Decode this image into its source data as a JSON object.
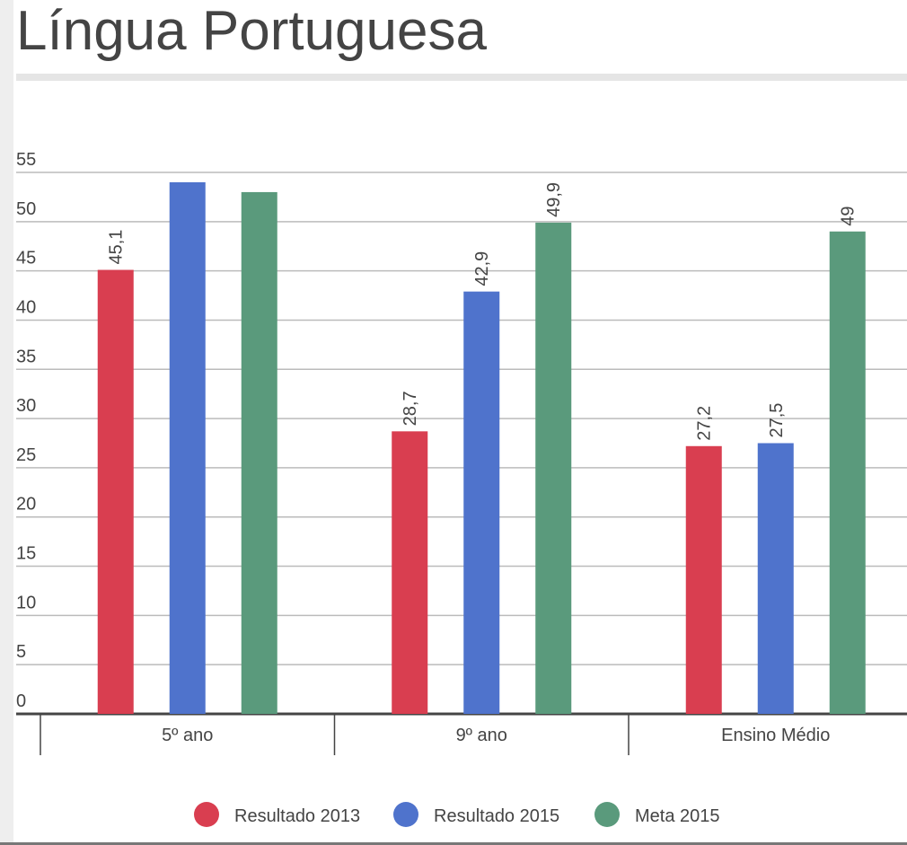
{
  "chart_data": {
    "type": "bar",
    "title": "Língua Portuguesa",
    "categories": [
      "5º ano",
      "9º ano",
      "Ensino Médio"
    ],
    "series": [
      {
        "name": "Resultado 2013",
        "color": "#d93e50",
        "values": [
          45.1,
          28.7,
          27.2
        ],
        "value_labels": [
          "45,1",
          "28,7",
          "27,2"
        ]
      },
      {
        "name": "Resultado 2015",
        "color": "#4f73cc",
        "values": [
          54,
          42.9,
          27.5
        ],
        "value_labels": [
          null,
          "42,9",
          "27,5"
        ]
      },
      {
        "name": "Meta 2015",
        "color": "#5a9a7c",
        "values": [
          53,
          49.9,
          49
        ],
        "value_labels": [
          null,
          "49,9",
          "49"
        ]
      }
    ],
    "ylim": [
      0,
      55
    ],
    "yticks": [
      0,
      5,
      10,
      15,
      20,
      25,
      30,
      35,
      40,
      45,
      50,
      55
    ],
    "grid": true,
    "legend": "bottom"
  }
}
